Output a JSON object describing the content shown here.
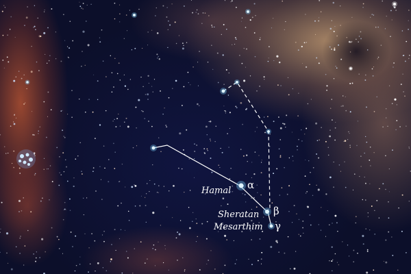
{
  "constellation": {
    "stars": [
      {
        "id": "hamal",
        "name": "Hamal",
        "greek": "α"
      },
      {
        "id": "sheratan",
        "name": "Sheratan",
        "greek": "β"
      },
      {
        "id": "mesarthim",
        "name": "Mesarthim",
        "greek": "γ"
      }
    ]
  },
  "colors": {
    "star": "#7fd3ff",
    "line": "#ffffff",
    "sky": "#0c0f2a"
  }
}
